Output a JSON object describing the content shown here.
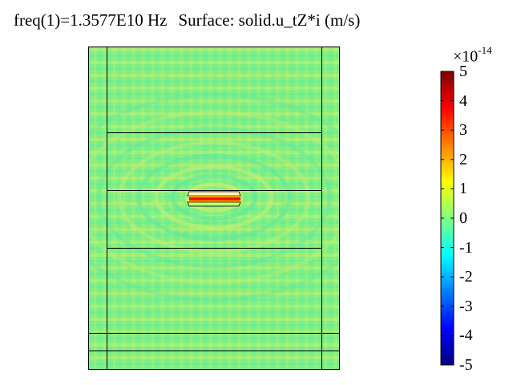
{
  "title": {
    "frequency": "freq(1)=1.3577E10 Hz",
    "surface": "Surface: solid.u_tZ*i (m/s)"
  },
  "colorbar": {
    "exponent_prefix": "×10",
    "exponent_power": "-14",
    "ticks": [
      "5",
      "4",
      "3",
      "2",
      "1",
      "0",
      "-1",
      "-2",
      "-3",
      "-4",
      "-5"
    ],
    "range": [
      -5,
      5
    ],
    "colormap": "rainbow",
    "stops": [
      "#00007f",
      "#0000ff",
      "#00ffff",
      "#7fff7f",
      "#ffff00",
      "#ff0000",
      "#7f0000"
    ]
  },
  "plot": {
    "background_color": "#80f080",
    "fringe_color_light": "#c8ee72",
    "fringe_color_dark": "#5ee8a0",
    "resonator_hot": "#ff0000",
    "resonator_warm": "#ffd000"
  }
}
